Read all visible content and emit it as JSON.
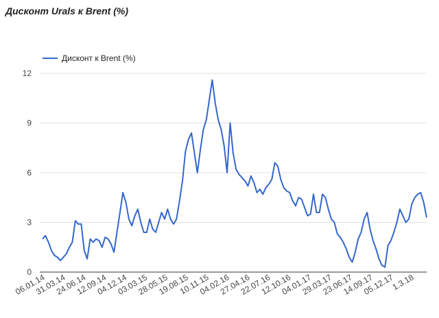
{
  "page": {
    "title": "Дисконт Urals к Brent (%)"
  },
  "chart_data": {
    "type": "line",
    "title": "Дисконт Urals к Brent (%)",
    "xlabel": "",
    "ylabel": "",
    "ylim": [
      0,
      12
    ],
    "yticks": [
      0,
      3,
      6,
      9,
      12
    ],
    "grid": true,
    "legend_position": "top-left",
    "colors": {
      "series": "#3366cc",
      "grid": "#e0e0e0",
      "axis": "#333333"
    },
    "x_tick_labels": [
      "06.01.14",
      "31.03.14",
      "24.06.14",
      "12.09.14",
      "04.12.14",
      "03.03.15",
      "28.05.15",
      "19.08.15",
      "10.11.15",
      "04.02.16",
      "27.04.16",
      "22.07.16",
      "12.10.16",
      "04.01.17",
      "29.03.17",
      "23.06.17",
      "14.09.17",
      "05.12.17",
      "1.3.18"
    ],
    "series": [
      {
        "name": "Дисконт к Brent (%)",
        "values": [
          2.0,
          2.2,
          1.8,
          1.3,
          1.0,
          0.9,
          0.7,
          0.9,
          1.1,
          1.5,
          1.8,
          3.1,
          2.9,
          2.9,
          1.3,
          0.8,
          2.0,
          1.8,
          2.0,
          1.9,
          1.5,
          2.1,
          2.0,
          1.7,
          1.2,
          2.4,
          3.6,
          4.8,
          4.2,
          3.2,
          2.8,
          3.4,
          3.8,
          3.0,
          2.4,
          2.4,
          3.2,
          2.6,
          2.4,
          3.0,
          3.6,
          3.2,
          3.8,
          3.2,
          2.9,
          3.2,
          4.3,
          5.5,
          7.3,
          8.0,
          8.4,
          7.2,
          6.0,
          7.4,
          8.6,
          9.2,
          10.4,
          11.6,
          10.2,
          9.2,
          8.6,
          7.6,
          6.0,
          9.0,
          7.2,
          6.2,
          5.9,
          5.7,
          5.5,
          5.2,
          5.8,
          5.4,
          4.8,
          5.0,
          4.7,
          5.1,
          5.3,
          5.6,
          6.6,
          6.4,
          5.6,
          5.1,
          4.9,
          4.8,
          4.3,
          4.0,
          4.5,
          4.4,
          3.9,
          3.4,
          3.5,
          4.7,
          3.6,
          3.6,
          4.7,
          4.5,
          3.8,
          3.2,
          3.0,
          2.3,
          2.1,
          1.8,
          1.4,
          0.9,
          0.6,
          1.2,
          2.0,
          2.4,
          3.2,
          3.6,
          2.6,
          1.9,
          1.4,
          0.8,
          0.4,
          0.3,
          1.6,
          1.9,
          2.4,
          3.0,
          3.8,
          3.4,
          3.0,
          3.2,
          4.1,
          4.5,
          4.7,
          4.8,
          4.2,
          3.3
        ]
      }
    ]
  }
}
